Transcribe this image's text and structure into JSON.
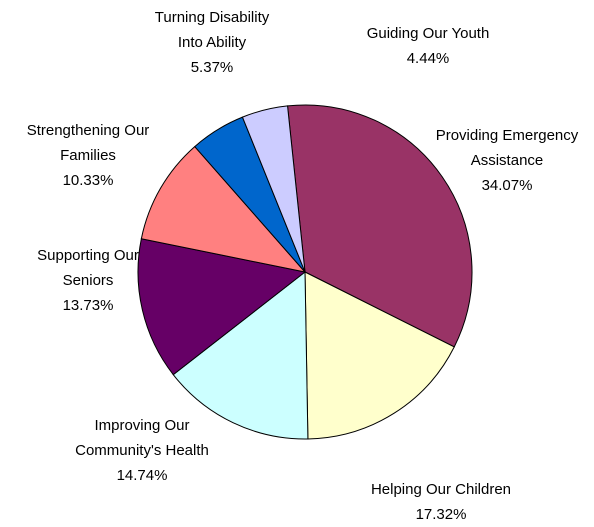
{
  "chart_data": {
    "type": "pie",
    "title": "",
    "start_angle_deg": -6,
    "direction": "clockwise",
    "legend": "none",
    "slices": [
      {
        "label_lines": [
          "Providing Emergency",
          "Assistance"
        ],
        "pct_text": "34.07%",
        "value": 34.07,
        "color": "#993366"
      },
      {
        "label_lines": [
          "Helping Our Children"
        ],
        "pct_text": "17.32%",
        "value": 17.32,
        "color": "#FFFFCC"
      },
      {
        "label_lines": [
          "Improving Our",
          "Community's Health"
        ],
        "pct_text": "14.74%",
        "value": 14.74,
        "color": "#CCFFFF"
      },
      {
        "label_lines": [
          "Supporting Our",
          "Seniors"
        ],
        "pct_text": "13.73%",
        "value": 13.73,
        "color": "#660066"
      },
      {
        "label_lines": [
          "Strengthening Our",
          "Families"
        ],
        "pct_text": "10.33%",
        "value": 10.33,
        "color": "#FF8080"
      },
      {
        "label_lines": [
          "Turning Disability",
          "Into Ability"
        ],
        "pct_text": "5.37%",
        "value": 5.37,
        "color": "#0066CC"
      },
      {
        "label_lines": [
          "Guiding Our Youth"
        ],
        "pct_text": "4.44%",
        "value": 4.44,
        "color": "#CCCCFF"
      }
    ]
  }
}
